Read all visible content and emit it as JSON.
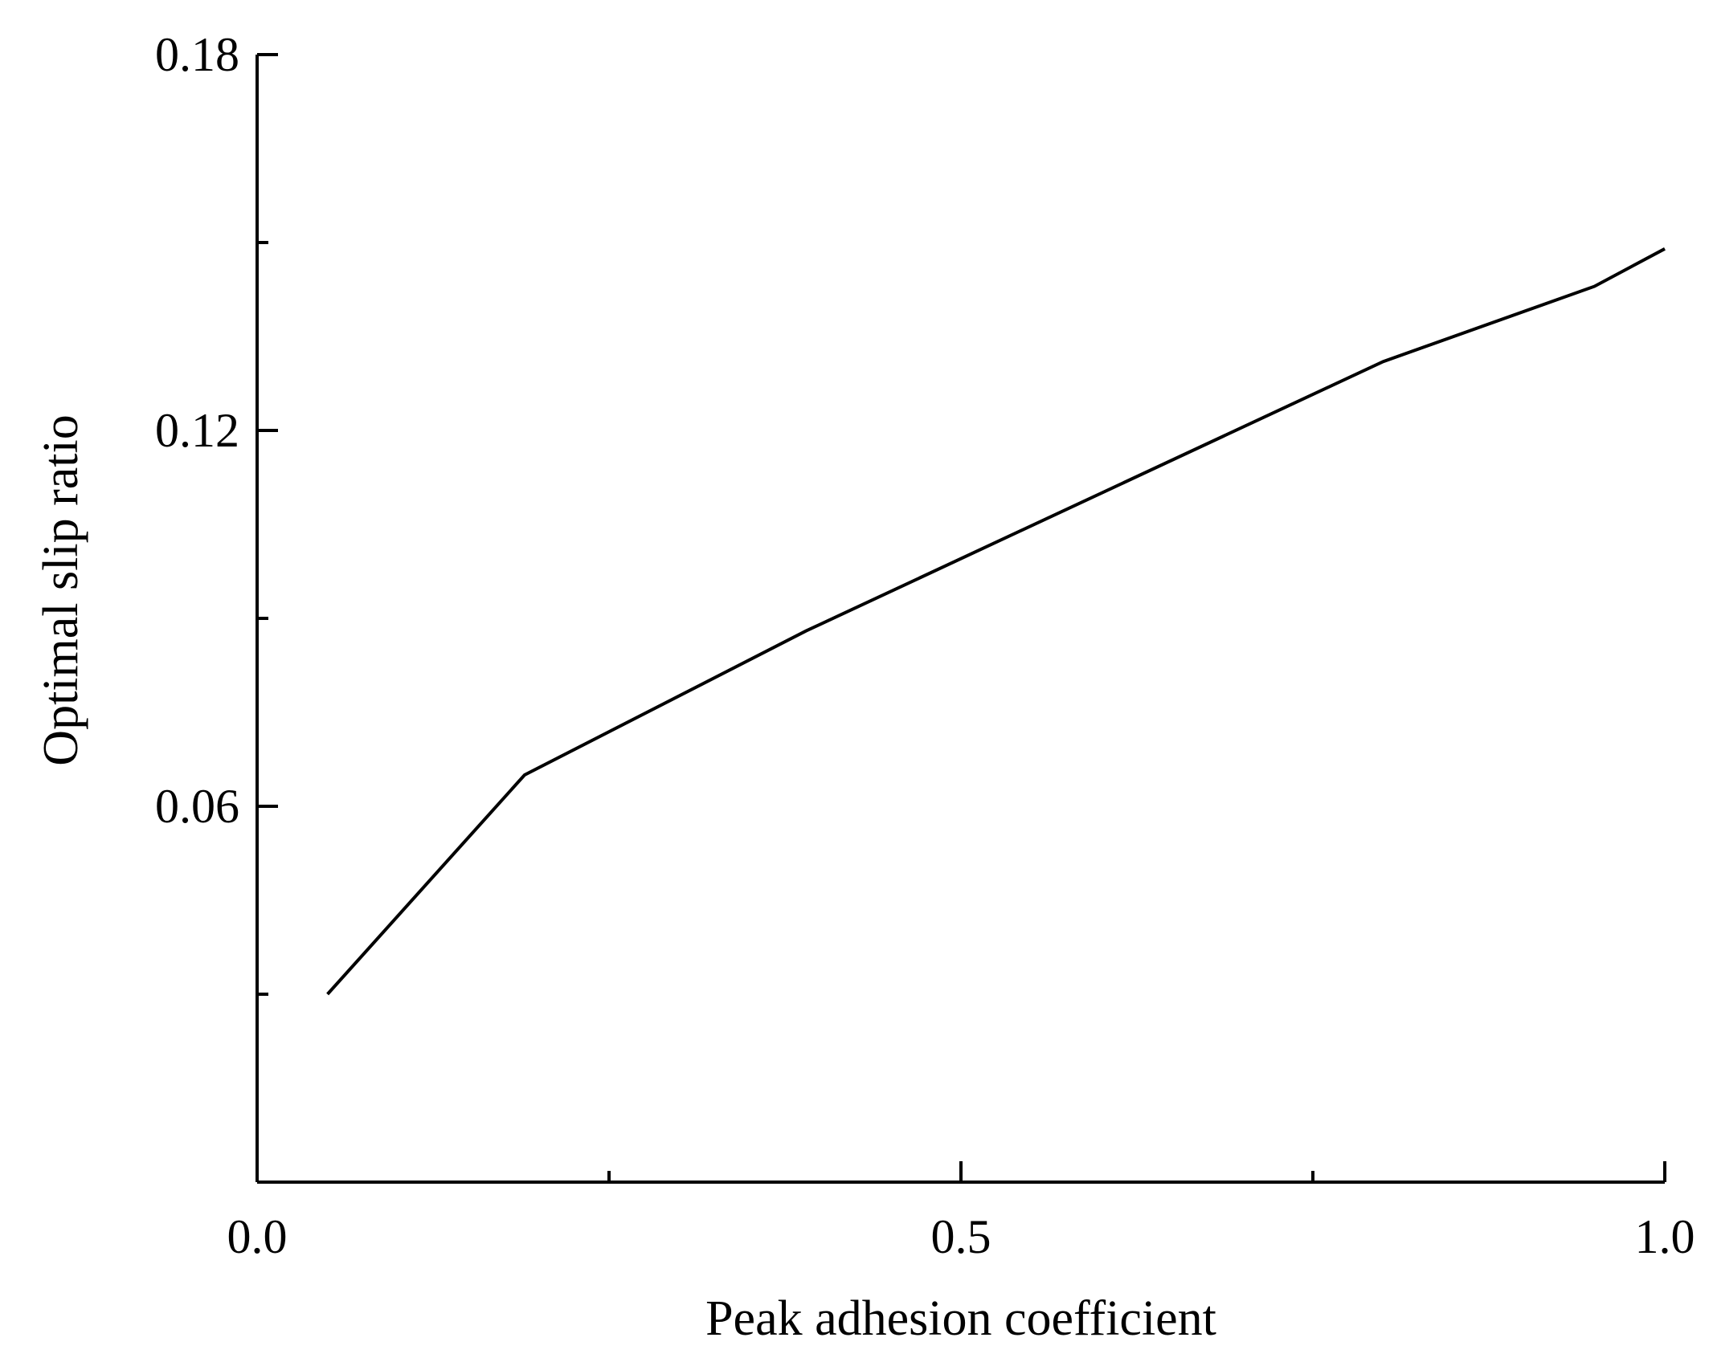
{
  "chart_data": {
    "type": "line",
    "title": "",
    "xlabel": "Peak adhesion coefficient",
    "ylabel": "Optimal slip ratio",
    "xlim": [
      0.0,
      1.0
    ],
    "ylim": [
      0.0,
      0.18
    ],
    "x_ticks": {
      "major": [
        0.0,
        0.5,
        1.0
      ],
      "major_labels": [
        "0.0",
        "0.5",
        "1.0"
      ],
      "minor": [
        0.25,
        0.75
      ]
    },
    "y_ticks": {
      "major": [
        0.06,
        0.12,
        0.18
      ],
      "major_labels": [
        "0.06",
        "0.12",
        "0.18"
      ],
      "minor": [
        0.03,
        0.09,
        0.15
      ]
    },
    "grid": false,
    "legend": "none",
    "colors": {
      "line": "#000000",
      "axis": "#000000"
    },
    "series": [
      {
        "x": [
          0.05,
          0.19,
          0.39,
          0.8,
          0.95,
          1.0
        ],
        "y": [
          0.03,
          0.065,
          0.088,
          0.131,
          0.143,
          0.149
        ]
      }
    ]
  }
}
